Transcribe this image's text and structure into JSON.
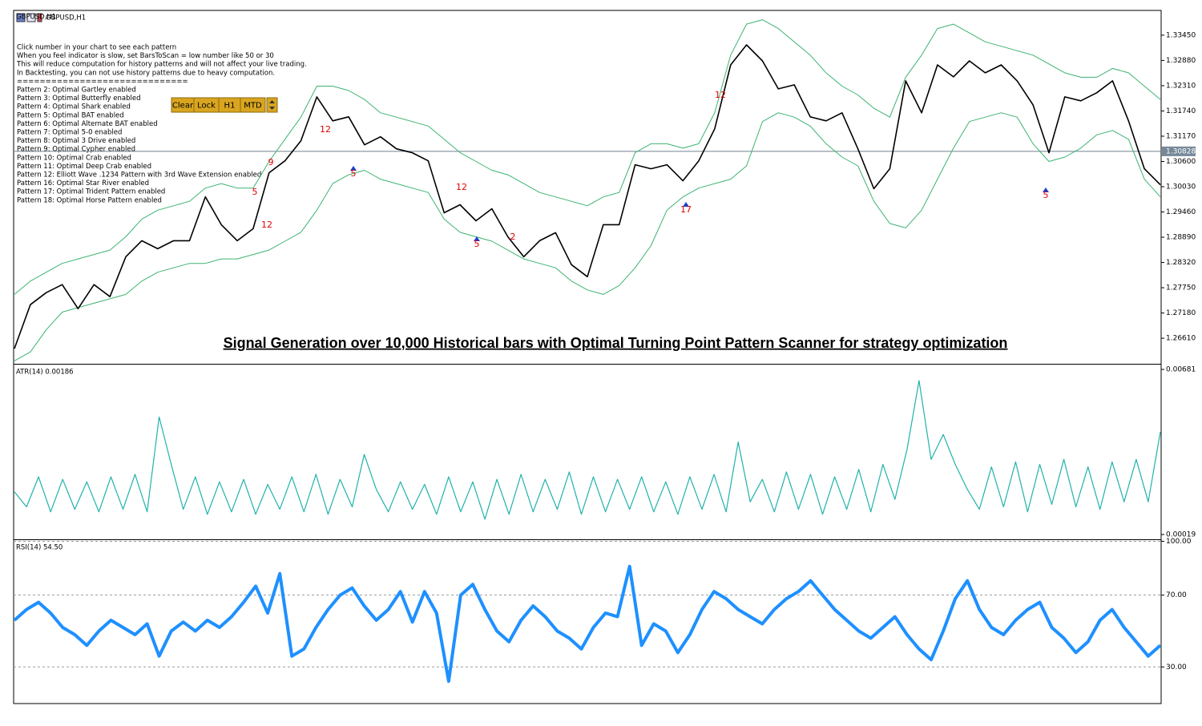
{
  "window": {
    "symbol": "GBPUSD,H1",
    "info_text": [
      "Click number in your chart to see each pattern",
      "When you feel indicator is slow, set BarsToScan = low number like 50 or 30",
      "This will reduce computation for history patterns and will not affect your live trading.",
      "In Backtesting, you can not use history patterns due to heavy computation.",
      "=============================="
    ],
    "patterns": [
      "Pattern 2: Optimal Gartley enabled",
      "Pattern 3: Optimal Butterfly enabled",
      "Pattern 4: Optimal Shark enabled",
      "Pattern 5: Optimal BAT enabled",
      "Pattern 6: Optimal Alternate BAT enabled",
      "Pattern 7: Optimal 5-0 enabled",
      "Pattern 8: Optimal 3 Drive enabled",
      "Pattern 9: Optimal Cypher enabled",
      "Pattern 10: Optimal Crab enabled",
      "Pattern 11: Optimal Deep Crab enabled",
      "Pattern 12: Elliott Wave .1234 Pattern with 3rd Wave Extension enabled",
      "Pattern 16: Optimal Star River enabled",
      "Pattern 17: Optimal Trident Pattern enabled",
      "Pattern 18: Optimal Horse Pattern enabled"
    ],
    "buttons": [
      "Clear",
      "Lock",
      "H1",
      "MTD"
    ]
  },
  "chart_data": [
    {
      "type": "line",
      "title": "GBPUSD,H1",
      "annotation": "Signal Generation over 10,000 Historical bars with Optimal Turning Point Pattern Scanner for strategy optimization",
      "series": [
        {
          "color": "#000000",
          "values": [
            1.26376,
            1.27368,
            1.27639,
            1.27819,
            1.27278,
            1.27819,
            1.27548,
            1.2845,
            1.28811,
            1.28631,
            1.28811,
            1.28811,
            1.29803,
            1.29172,
            1.28811,
            1.29082,
            1.30345,
            1.30615,
            1.31066,
            1.32058,
            1.31517,
            1.31607,
            1.30976,
            1.31156,
            1.30886,
            1.30796,
            1.30615,
            1.29443,
            1.29623,
            1.29262,
            1.29533,
            1.28901,
            1.2845,
            1.28811,
            1.28992,
            1.2827,
            1.27999,
            1.29172,
            1.29172,
            1.30525,
            1.30435,
            1.30525,
            1.30164,
            1.30615,
            1.31337,
            1.3278,
            1.33231,
            1.3287,
            1.32239,
            1.32329,
            1.31607,
            1.31517,
            1.31698,
            1.30886,
            1.29984,
            1.30435,
            1.32419,
            1.31698,
            1.3278,
            1.32509,
            1.3287,
            1.326,
            1.3278,
            1.32419,
            1.31878,
            1.30796,
            1.32058,
            1.31968,
            1.32149,
            1.32419,
            1.31517,
            1.30435,
            1.30074
          ]
        },
        {
          "color": "#3cb371",
          "values": [
            1.276,
            1.279,
            1.281,
            1.283,
            1.284,
            1.285,
            1.286,
            1.289,
            1.293,
            1.295,
            1.296,
            1.297,
            1.3,
            1.301,
            1.3,
            1.3,
            1.306,
            1.311,
            1.316,
            1.323,
            1.323,
            1.322,
            1.32,
            1.317,
            1.316,
            1.315,
            1.314,
            1.311,
            1.308,
            1.306,
            1.304,
            1.303,
            1.301,
            1.299,
            1.298,
            1.297,
            1.296,
            1.298,
            1.299,
            1.308,
            1.31,
            1.31,
            1.309,
            1.31,
            1.317,
            1.33,
            1.337,
            1.338,
            1.336,
            1.333,
            1.33,
            1.326,
            1.323,
            1.321,
            1.318,
            1.316,
            1.325,
            1.33,
            1.336,
            1.337,
            1.335,
            1.333,
            1.332,
            1.331,
            1.33,
            1.328,
            1.326,
            1.325,
            1.325,
            1.327,
            1.326,
            1.323,
            1.32
          ]
        },
        {
          "color": "#3cb371",
          "values": [
            1.261,
            1.263,
            1.268,
            1.272,
            1.273,
            1.274,
            1.275,
            1.276,
            1.279,
            1.281,
            1.282,
            1.283,
            1.283,
            1.284,
            1.284,
            1.285,
            1.286,
            1.288,
            1.29,
            1.295,
            1.301,
            1.303,
            1.304,
            1.302,
            1.301,
            1.3,
            1.299,
            1.293,
            1.29,
            1.289,
            1.288,
            1.286,
            1.284,
            1.283,
            1.282,
            1.279,
            1.277,
            1.276,
            1.278,
            1.282,
            1.287,
            1.295,
            1.298,
            1.3,
            1.301,
            1.302,
            1.305,
            1.315,
            1.317,
            1.316,
            1.314,
            1.31,
            1.307,
            1.305,
            1.297,
            1.292,
            1.291,
            1.295,
            1.302,
            1.309,
            1.315,
            1.316,
            1.317,
            1.316,
            1.31,
            1.306,
            1.307,
            1.309,
            1.312,
            1.313,
            1.311,
            1.302,
            1.298
          ]
        }
      ],
      "ylim": [
        1.26051,
        1.34009
      ],
      "yticks": [
        {
          "value": 1.3345,
          "label": "1.33450"
        },
        {
          "value": 1.3288,
          "label": "1.32880"
        },
        {
          "value": 1.3231,
          "label": "1.32310"
        },
        {
          "value": 1.3174,
          "label": "1.31740"
        },
        {
          "value": 1.3117,
          "label": "1.31170"
        },
        {
          "value": 1.306,
          "label": "1.30600"
        },
        {
          "value": 1.3003,
          "label": "1.30030"
        },
        {
          "value": 1.2946,
          "label": "1.29460"
        },
        {
          "value": 1.2889,
          "label": "1.28890"
        },
        {
          "value": 1.2832,
          "label": "1.28320"
        },
        {
          "value": 1.2775,
          "label": "1.27750"
        },
        {
          "value": 1.2718,
          "label": "1.27180"
        },
        {
          "value": 1.2661,
          "label": "1.26610"
        }
      ],
      "current_price": {
        "value": 1.30828,
        "label": "1.30828"
      },
      "pattern_marks": [
        "5",
        "12",
        "9",
        "12",
        "5",
        "12",
        "5",
        "2",
        "17",
        "12",
        "5"
      ]
    },
    {
      "type": "line",
      "title": "ATR(14) 0.00186",
      "color": "#20b2aa",
      "values": [
        0.0019,
        0.0013,
        0.0025,
        0.0011,
        0.0024,
        0.0012,
        0.0023,
        0.0011,
        0.0025,
        0.0012,
        0.0026,
        0.0011,
        0.0049,
        0.003,
        0.0012,
        0.0025,
        0.001,
        0.0023,
        0.0011,
        0.0024,
        0.001,
        0.0022,
        0.0012,
        0.0025,
        0.0011,
        0.0026,
        0.001,
        0.0024,
        0.0013,
        0.0034,
        0.002,
        0.0011,
        0.0023,
        0.0012,
        0.0022,
        0.001,
        0.0025,
        0.0011,
        0.0023,
        0.0008,
        0.0024,
        0.001,
        0.0026,
        0.0011,
        0.0024,
        0.0012,
        0.0027,
        0.001,
        0.0025,
        0.0011,
        0.0024,
        0.0012,
        0.0025,
        0.0011,
        0.0023,
        0.001,
        0.0025,
        0.0012,
        0.0026,
        0.0011,
        0.0039,
        0.0015,
        0.0024,
        0.0011,
        0.0027,
        0.0012,
        0.0026,
        0.001,
        0.0025,
        0.0012,
        0.0028,
        0.0011,
        0.003,
        0.0016,
        0.0036,
        0.00636,
        0.0032,
        0.0042,
        0.003,
        0.002,
        0.0012,
        0.0029,
        0.0013,
        0.0031,
        0.0011,
        0.003,
        0.0014,
        0.0032,
        0.0013,
        0.0029,
        0.0012,
        0.0031,
        0.0015,
        0.0032,
        0.0015,
        0.0043
      ],
      "ylim": [
        3e-05,
        0.00697
      ],
      "yticks": [
        0.00681,
        0.00019
      ]
    },
    {
      "type": "line",
      "title": "RSI(14) 54.50",
      "color": "#1e90ff",
      "values": [
        56,
        62,
        66,
        60,
        52,
        48,
        42,
        50,
        56,
        52,
        48,
        54,
        36,
        50,
        55,
        50,
        56,
        52,
        58,
        66,
        75,
        60,
        82,
        36,
        40,
        52,
        62,
        70,
        74,
        64,
        56,
        62,
        72,
        55,
        72,
        60,
        22,
        70,
        76,
        62,
        50,
        44,
        56,
        64,
        58,
        50,
        46,
        40,
        52,
        60,
        58,
        86,
        42,
        54,
        50,
        38,
        48,
        62,
        72,
        68,
        62,
        58,
        54,
        62,
        68,
        72,
        78,
        70,
        62,
        56,
        50,
        46,
        52,
        58,
        48,
        40,
        34,
        50,
        68,
        78,
        62,
        52,
        48,
        56,
        62,
        66,
        52,
        46,
        38,
        44,
        56,
        62,
        52,
        44,
        36,
        42
      ],
      "ylim": [
        9.6,
        100.2
      ],
      "yticks": [
        {
          "value": 100,
          "label": "100.00"
        },
        {
          "value": 70,
          "label": "70.00"
        },
        {
          "value": 30,
          "label": "30.00"
        }
      ],
      "grid": "dashed"
    }
  ]
}
